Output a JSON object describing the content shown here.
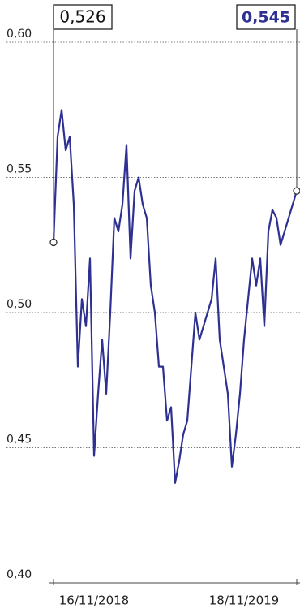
{
  "chart_data": {
    "type": "line",
    "color": "#2e3192",
    "grid": true,
    "ylim": [
      0.4,
      0.6
    ],
    "yticks": [
      {
        "value": 0.4,
        "label": "0,40"
      },
      {
        "value": 0.45,
        "label": "0,45"
      },
      {
        "value": 0.5,
        "label": "0,50"
      },
      {
        "value": 0.55,
        "label": "0,55"
      },
      {
        "value": 0.6,
        "label": "0,60"
      }
    ],
    "categories": [
      null,
      null,
      null,
      null,
      null,
      null,
      null,
      null,
      null,
      null,
      "16/11/2018",
      null,
      null,
      null,
      null,
      null,
      null,
      null,
      null,
      null,
      null,
      null,
      null,
      null,
      null,
      null,
      null,
      null,
      null,
      null,
      null,
      null,
      null,
      null,
      null,
      null,
      null,
      null,
      null,
      null,
      null,
      null,
      null,
      null,
      null,
      null,
      null,
      "18/11/2019",
      null,
      null,
      null,
      null,
      null,
      null,
      null,
      null,
      null,
      null,
      null,
      null,
      null
    ],
    "values": [
      0.526,
      0.565,
      0.575,
      0.56,
      0.565,
      0.54,
      0.48,
      0.505,
      0.495,
      0.52,
      0.447,
      0.47,
      0.49,
      0.47,
      0.5,
      0.535,
      0.53,
      0.54,
      0.562,
      0.52,
      0.545,
      0.55,
      0.54,
      0.535,
      0.51,
      0.5,
      0.48,
      0.48,
      0.46,
      0.465,
      0.437,
      0.445,
      0.455,
      0.46,
      0.48,
      0.5,
      0.49,
      0.495,
      0.5,
      0.505,
      0.52,
      0.49,
      0.48,
      0.47,
      0.443,
      0.455,
      0.47,
      0.49,
      0.505,
      0.52,
      0.51,
      0.52,
      0.495,
      0.53,
      0.538,
      0.535,
      0.525,
      0.53,
      0.535,
      0.54,
      0.545
    ],
    "value_labels": [
      "0,526",
      null,
      null,
      null,
      null,
      null,
      null,
      null,
      null,
      null,
      null,
      null,
      null,
      null,
      null,
      null,
      null,
      null,
      null,
      null,
      null,
      null,
      null,
      null,
      null,
      null,
      null,
      null,
      null,
      null,
      null,
      null,
      null,
      null,
      null,
      null,
      null,
      null,
      null,
      null,
      null,
      null,
      null,
      null,
      null,
      null,
      null,
      null,
      null,
      null,
      null,
      null,
      null,
      null,
      null,
      null,
      null,
      null,
      null,
      null,
      "0,545"
    ]
  }
}
